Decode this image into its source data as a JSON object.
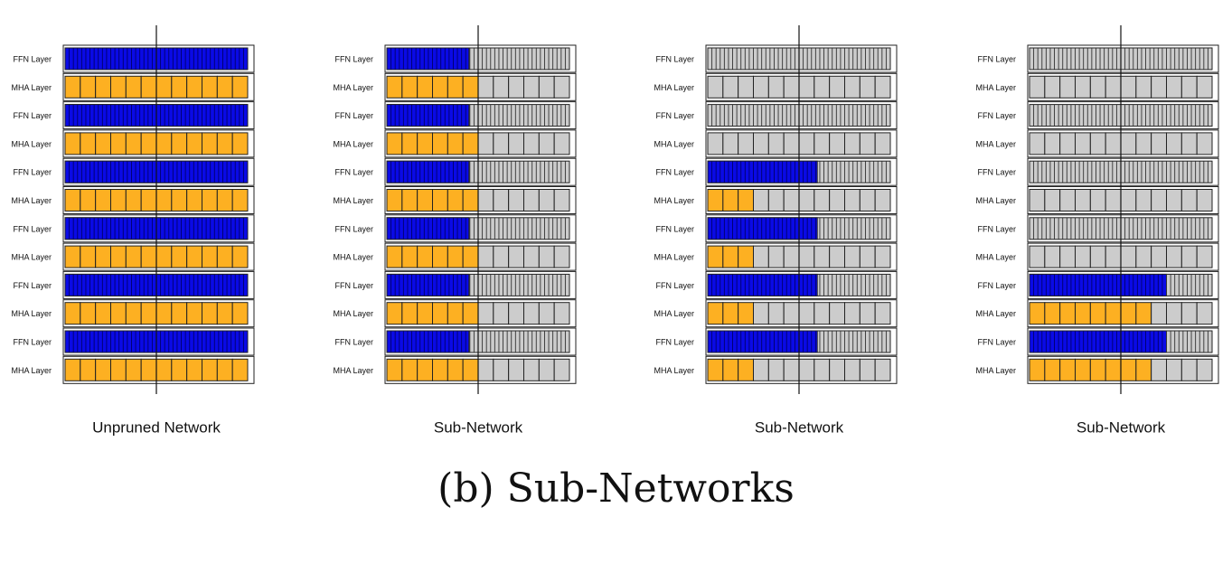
{
  "colors": {
    "ffn_active": "#0a0ae6",
    "mha_active": "#fdb022",
    "inactive": "#cccccc",
    "outline": "#222222"
  },
  "layer_labels": {
    "ffn": "FFN Layer",
    "mha": "MHA Layer"
  },
  "caption": "(b) Sub-Networks",
  "panels": [
    {
      "title": "Unpruned Network",
      "layers": [
        {
          "type": "ffn",
          "active": true,
          "fraction": 1.0
        },
        {
          "type": "mha",
          "active": true,
          "fraction": 1.0
        },
        {
          "type": "ffn",
          "active": true,
          "fraction": 1.0
        },
        {
          "type": "mha",
          "active": true,
          "fraction": 1.0
        },
        {
          "type": "ffn",
          "active": true,
          "fraction": 1.0
        },
        {
          "type": "mha",
          "active": true,
          "fraction": 1.0
        },
        {
          "type": "ffn",
          "active": true,
          "fraction": 1.0
        },
        {
          "type": "mha",
          "active": true,
          "fraction": 1.0
        },
        {
          "type": "ffn",
          "active": true,
          "fraction": 1.0
        },
        {
          "type": "mha",
          "active": true,
          "fraction": 1.0
        },
        {
          "type": "ffn",
          "active": true,
          "fraction": 1.0
        },
        {
          "type": "mha",
          "active": true,
          "fraction": 1.0
        }
      ]
    },
    {
      "title": "Sub-Network",
      "layers": [
        {
          "type": "ffn",
          "active": true,
          "fraction": 0.45
        },
        {
          "type": "mha",
          "active": true,
          "fraction": 0.5
        },
        {
          "type": "ffn",
          "active": true,
          "fraction": 0.45
        },
        {
          "type": "mha",
          "active": true,
          "fraction": 0.5
        },
        {
          "type": "ffn",
          "active": true,
          "fraction": 0.45
        },
        {
          "type": "mha",
          "active": true,
          "fraction": 0.5
        },
        {
          "type": "ffn",
          "active": true,
          "fraction": 0.45
        },
        {
          "type": "mha",
          "active": true,
          "fraction": 0.5
        },
        {
          "type": "ffn",
          "active": true,
          "fraction": 0.45
        },
        {
          "type": "mha",
          "active": true,
          "fraction": 0.5
        },
        {
          "type": "ffn",
          "active": true,
          "fraction": 0.45
        },
        {
          "type": "mha",
          "active": true,
          "fraction": 0.5
        }
      ]
    },
    {
      "title": "Sub-Network",
      "layers": [
        {
          "type": "ffn",
          "active": false,
          "fraction": 0
        },
        {
          "type": "mha",
          "active": false,
          "fraction": 0
        },
        {
          "type": "ffn",
          "active": false,
          "fraction": 0
        },
        {
          "type": "mha",
          "active": false,
          "fraction": 0
        },
        {
          "type": "ffn",
          "active": true,
          "fraction": 0.6
        },
        {
          "type": "mha",
          "active": true,
          "fraction": 0.25
        },
        {
          "type": "ffn",
          "active": true,
          "fraction": 0.6
        },
        {
          "type": "mha",
          "active": true,
          "fraction": 0.25
        },
        {
          "type": "ffn",
          "active": true,
          "fraction": 0.6
        },
        {
          "type": "mha",
          "active": true,
          "fraction": 0.25
        },
        {
          "type": "ffn",
          "active": true,
          "fraction": 0.6
        },
        {
          "type": "mha",
          "active": true,
          "fraction": 0.25
        }
      ]
    },
    {
      "title": "Sub-Network",
      "layers": [
        {
          "type": "ffn",
          "active": false,
          "fraction": 0
        },
        {
          "type": "mha",
          "active": false,
          "fraction": 0
        },
        {
          "type": "ffn",
          "active": false,
          "fraction": 0
        },
        {
          "type": "mha",
          "active": false,
          "fraction": 0
        },
        {
          "type": "ffn",
          "active": false,
          "fraction": 0
        },
        {
          "type": "mha",
          "active": false,
          "fraction": 0
        },
        {
          "type": "ffn",
          "active": false,
          "fraction": 0
        },
        {
          "type": "mha",
          "active": false,
          "fraction": 0
        },
        {
          "type": "ffn",
          "active": true,
          "fraction": 0.75
        },
        {
          "type": "mha",
          "active": true,
          "fraction": 0.67
        },
        {
          "type": "ffn",
          "active": true,
          "fraction": 0.75
        },
        {
          "type": "mha",
          "active": true,
          "fraction": 0.67
        }
      ]
    }
  ]
}
